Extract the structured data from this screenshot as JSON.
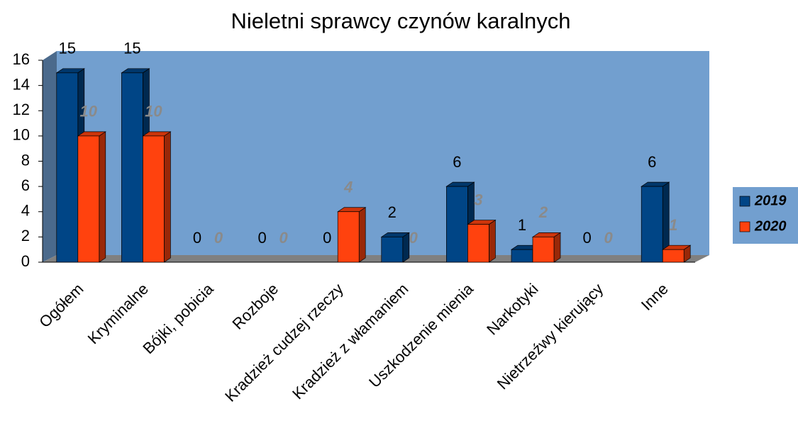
{
  "chart_data": {
    "type": "bar3d",
    "title": "Nieletni sprawcy czynów karalnych",
    "categories": [
      "Ogółem",
      "Kryminalne",
      "Bójki, pobicia",
      "Rozboje",
      "Kradzież cudzej rzeczy",
      "Kradzież z włamaniem",
      "Uszkodzenie mienia",
      "Narkotyki",
      "Nietrzeźwy kierujący",
      "Inne"
    ],
    "series": [
      {
        "name": "2019",
        "color": "#004586",
        "values": [
          15,
          15,
          0,
          0,
          0,
          2,
          6,
          1,
          0,
          6
        ]
      },
      {
        "name": "2020",
        "color": "#ff420e",
        "values": [
          10,
          10,
          0,
          0,
          4,
          0,
          3,
          2,
          0,
          1
        ]
      }
    ],
    "ylim": [
      0,
      16
    ],
    "yticks": [
      0,
      2,
      4,
      6,
      8,
      10,
      12,
      14,
      16
    ],
    "legend": "right",
    "wall_color": "#729fcf"
  }
}
